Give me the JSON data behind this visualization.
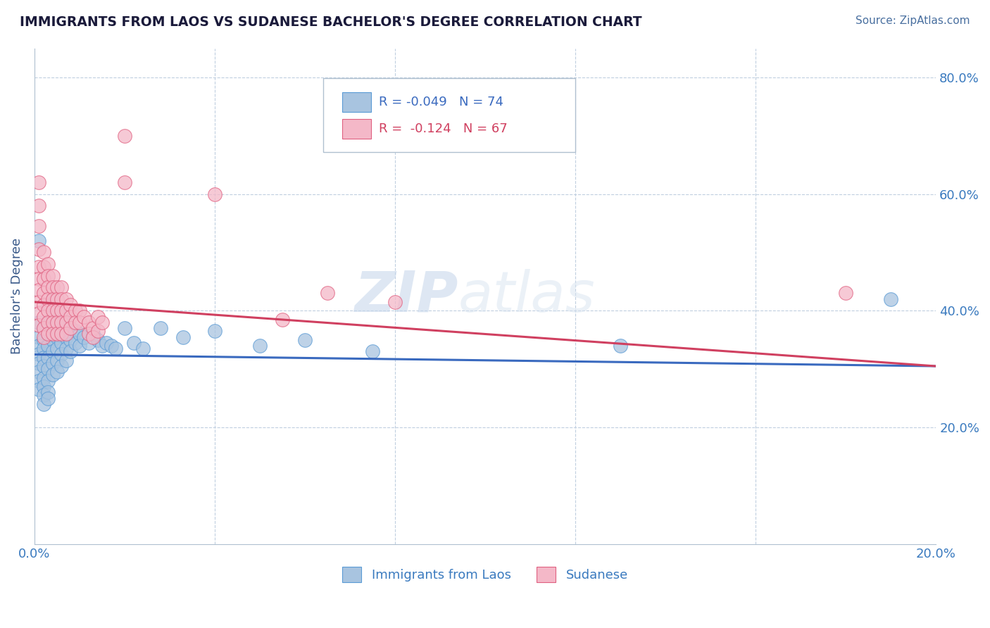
{
  "title": "IMMIGRANTS FROM LAOS VS SUDANESE BACHELOR'S DEGREE CORRELATION CHART",
  "source_text": "Source: ZipAtlas.com",
  "ylabel": "Bachelor's Degree",
  "xlim": [
    0.0,
    0.2
  ],
  "ylim": [
    0.0,
    0.85
  ],
  "xtick_vals": [
    0.0,
    0.04,
    0.08,
    0.12,
    0.16,
    0.2
  ],
  "xtick_labels": [
    "0.0%",
    "",
    "",
    "",
    "",
    "20.0%"
  ],
  "ytick_vals": [
    0.0,
    0.2,
    0.4,
    0.6,
    0.8
  ],
  "ytick_labels_left": [
    "",
    "",
    "",
    "",
    ""
  ],
  "ytick_labels_right": [
    "",
    "20.0%",
    "40.0%",
    "60.0%",
    "80.0%"
  ],
  "legend_entries": [
    {
      "r": "R = -0.049",
      "n": "N = 74",
      "color": "#a8c4e0",
      "edge": "#5b9bd5"
    },
    {
      "r": "R =  -0.124",
      "n": "N = 67",
      "color": "#f4b8c8",
      "edge": "#e06080"
    }
  ],
  "watermark": "ZIPatlas",
  "blue_color": "#a8c4e0",
  "pink_color": "#f4b8c8",
  "blue_edge": "#5b9bd5",
  "pink_edge": "#e06080",
  "blue_line_color": "#3a6abf",
  "pink_line_color": "#d04060",
  "grid_color": "#c0cfe0",
  "title_color": "#1a1a3a",
  "source_color": "#4a70a0",
  "axis_label_color": "#3a5a8a",
  "tick_color": "#3a7abf",
  "blue_scatter": [
    [
      0.001,
      0.38
    ],
    [
      0.001,
      0.355
    ],
    [
      0.001,
      0.34
    ],
    [
      0.001,
      0.325
    ],
    [
      0.001,
      0.31
    ],
    [
      0.001,
      0.295
    ],
    [
      0.001,
      0.28
    ],
    [
      0.001,
      0.265
    ],
    [
      0.001,
      0.52
    ],
    [
      0.002,
      0.37
    ],
    [
      0.002,
      0.35
    ],
    [
      0.002,
      0.335
    ],
    [
      0.002,
      0.32
    ],
    [
      0.002,
      0.305
    ],
    [
      0.002,
      0.285
    ],
    [
      0.002,
      0.27
    ],
    [
      0.002,
      0.255
    ],
    [
      0.002,
      0.24
    ],
    [
      0.003,
      0.41
    ],
    [
      0.003,
      0.38
    ],
    [
      0.003,
      0.36
    ],
    [
      0.003,
      0.34
    ],
    [
      0.003,
      0.32
    ],
    [
      0.003,
      0.3
    ],
    [
      0.003,
      0.28
    ],
    [
      0.003,
      0.26
    ],
    [
      0.003,
      0.25
    ],
    [
      0.004,
      0.42
    ],
    [
      0.004,
      0.39
    ],
    [
      0.004,
      0.37
    ],
    [
      0.004,
      0.35
    ],
    [
      0.004,
      0.33
    ],
    [
      0.004,
      0.31
    ],
    [
      0.004,
      0.29
    ],
    [
      0.005,
      0.4
    ],
    [
      0.005,
      0.375
    ],
    [
      0.005,
      0.355
    ],
    [
      0.005,
      0.335
    ],
    [
      0.005,
      0.315
    ],
    [
      0.005,
      0.295
    ],
    [
      0.006,
      0.39
    ],
    [
      0.006,
      0.365
    ],
    [
      0.006,
      0.345
    ],
    [
      0.006,
      0.325
    ],
    [
      0.006,
      0.305
    ],
    [
      0.007,
      0.38
    ],
    [
      0.007,
      0.355
    ],
    [
      0.007,
      0.335
    ],
    [
      0.007,
      0.315
    ],
    [
      0.008,
      0.37
    ],
    [
      0.008,
      0.35
    ],
    [
      0.008,
      0.33
    ],
    [
      0.009,
      0.365
    ],
    [
      0.009,
      0.345
    ],
    [
      0.01,
      0.36
    ],
    [
      0.01,
      0.34
    ],
    [
      0.011,
      0.355
    ],
    [
      0.012,
      0.345
    ],
    [
      0.013,
      0.36
    ],
    [
      0.014,
      0.35
    ],
    [
      0.015,
      0.34
    ],
    [
      0.016,
      0.345
    ],
    [
      0.017,
      0.34
    ],
    [
      0.018,
      0.335
    ],
    [
      0.02,
      0.37
    ],
    [
      0.022,
      0.345
    ],
    [
      0.024,
      0.335
    ],
    [
      0.028,
      0.37
    ],
    [
      0.033,
      0.355
    ],
    [
      0.04,
      0.365
    ],
    [
      0.05,
      0.34
    ],
    [
      0.06,
      0.35
    ],
    [
      0.075,
      0.33
    ],
    [
      0.13,
      0.34
    ],
    [
      0.19,
      0.42
    ]
  ],
  "pink_scatter": [
    [
      0.001,
      0.62
    ],
    [
      0.001,
      0.58
    ],
    [
      0.001,
      0.545
    ],
    [
      0.001,
      0.505
    ],
    [
      0.001,
      0.475
    ],
    [
      0.001,
      0.455
    ],
    [
      0.001,
      0.435
    ],
    [
      0.001,
      0.415
    ],
    [
      0.001,
      0.395
    ],
    [
      0.001,
      0.375
    ],
    [
      0.002,
      0.5
    ],
    [
      0.002,
      0.475
    ],
    [
      0.002,
      0.455
    ],
    [
      0.002,
      0.43
    ],
    [
      0.002,
      0.41
    ],
    [
      0.002,
      0.39
    ],
    [
      0.002,
      0.37
    ],
    [
      0.002,
      0.355
    ],
    [
      0.003,
      0.48
    ],
    [
      0.003,
      0.46
    ],
    [
      0.003,
      0.44
    ],
    [
      0.003,
      0.42
    ],
    [
      0.003,
      0.4
    ],
    [
      0.003,
      0.38
    ],
    [
      0.003,
      0.36
    ],
    [
      0.004,
      0.46
    ],
    [
      0.004,
      0.44
    ],
    [
      0.004,
      0.42
    ],
    [
      0.004,
      0.4
    ],
    [
      0.004,
      0.38
    ],
    [
      0.004,
      0.36
    ],
    [
      0.005,
      0.44
    ],
    [
      0.005,
      0.42
    ],
    [
      0.005,
      0.4
    ],
    [
      0.005,
      0.38
    ],
    [
      0.005,
      0.36
    ],
    [
      0.006,
      0.44
    ],
    [
      0.006,
      0.42
    ],
    [
      0.006,
      0.4
    ],
    [
      0.006,
      0.38
    ],
    [
      0.006,
      0.36
    ],
    [
      0.007,
      0.42
    ],
    [
      0.007,
      0.4
    ],
    [
      0.007,
      0.38
    ],
    [
      0.007,
      0.36
    ],
    [
      0.008,
      0.41
    ],
    [
      0.008,
      0.39
    ],
    [
      0.008,
      0.37
    ],
    [
      0.009,
      0.4
    ],
    [
      0.009,
      0.38
    ],
    [
      0.01,
      0.4
    ],
    [
      0.01,
      0.38
    ],
    [
      0.011,
      0.39
    ],
    [
      0.012,
      0.38
    ],
    [
      0.012,
      0.36
    ],
    [
      0.013,
      0.37
    ],
    [
      0.013,
      0.355
    ],
    [
      0.014,
      0.39
    ],
    [
      0.014,
      0.365
    ],
    [
      0.015,
      0.38
    ],
    [
      0.02,
      0.7
    ],
    [
      0.02,
      0.62
    ],
    [
      0.04,
      0.6
    ],
    [
      0.055,
      0.385
    ],
    [
      0.065,
      0.43
    ],
    [
      0.08,
      0.415
    ],
    [
      0.18,
      0.43
    ]
  ],
  "blue_line_x": [
    0.0,
    0.2
  ],
  "blue_line_y": [
    0.325,
    0.305
  ],
  "pink_line_x": [
    0.0,
    0.2
  ],
  "pink_line_y": [
    0.415,
    0.305
  ]
}
